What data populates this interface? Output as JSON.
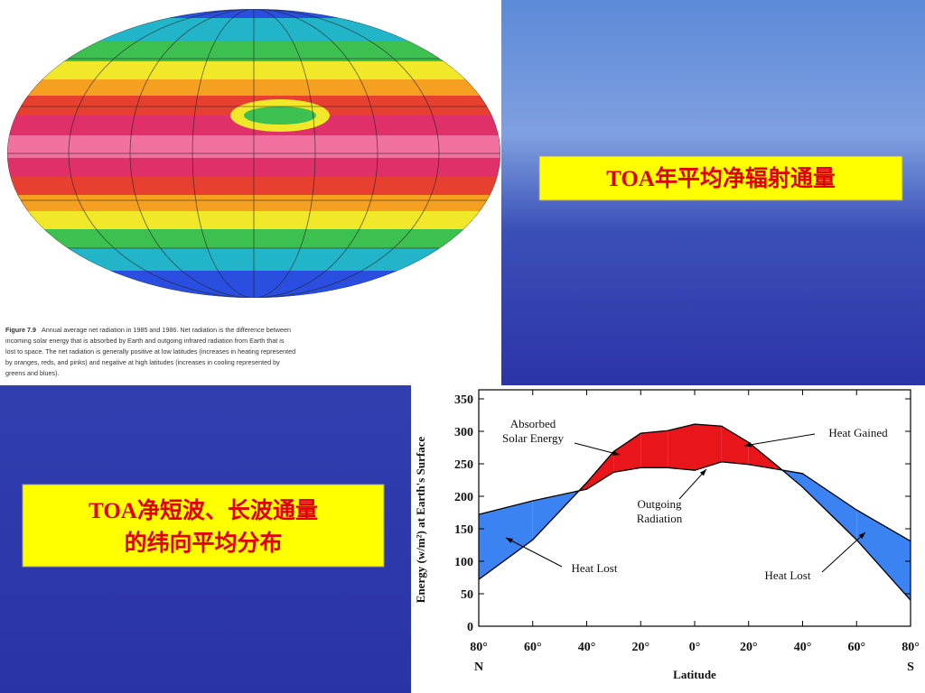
{
  "map_caption": {
    "figure_label": "Figure 7.9",
    "lines": [
      "Annual average net radiation in 1985 and 1986. Net radiation is the difference between",
      "incoming solar energy that is absorbed by Earth and outgoing infrared radiation from Earth that is",
      "lost to space. The net radiation is generally positive at low latitudes (increases in heating represented",
      "by oranges, reds, and pinks) and negative at high latitudes (increases in cooling represented by",
      "greens and blues)."
    ]
  },
  "label_top": "TOA年平均净辐射通量",
  "label_bottom": [
    "TOA净短波、长波通量",
    "的纬向平均分布"
  ],
  "chart_data": {
    "type": "line",
    "y_label": "Energy (w/m²) at Earth's Surface",
    "x_label": "Latitude",
    "x_end_labels": [
      "N",
      "S"
    ],
    "x": [
      80,
      60,
      40,
      30,
      20,
      10,
      0,
      -10,
      -20,
      -30,
      -40,
      -60,
      -80
    ],
    "series": [
      {
        "name": "Absorbed Solar Energy",
        "color": "#000000",
        "values": [
          72,
          133,
          221,
          269,
          297,
          301,
          311,
          308,
          283,
          249,
          214,
          133,
          40
        ]
      },
      {
        "name": "Outgoing Radiation",
        "color": "#000000",
        "values": [
          172,
          193,
          211,
          237,
          244,
          244,
          240,
          253,
          249,
          242,
          235,
          179,
          131
        ]
      }
    ],
    "fill_colors": {
      "gain": "#e8161b",
      "loss": "#3b82f2"
    },
    "xlim": [
      80,
      -80
    ],
    "xticks": [
      {
        "value": 80,
        "label": "80°"
      },
      {
        "value": 60,
        "label": "60°"
      },
      {
        "value": 40,
        "label": "40°"
      },
      {
        "value": 20,
        "label": "20°"
      },
      {
        "value": 0,
        "label": "0°"
      },
      {
        "value": -20,
        "label": "20°"
      },
      {
        "value": -40,
        "label": "40°"
      },
      {
        "value": -60,
        "label": "60°"
      },
      {
        "value": -80,
        "label": "80°"
      }
    ],
    "ylim": [
      0,
      350
    ],
    "yticks": [
      0,
      50,
      100,
      150,
      200,
      250,
      300,
      350
    ],
    "annotations": [
      {
        "lines": [
          "Absorbed",
          "Solar Energy"
        ]
      },
      {
        "lines": [
          "Heat Gained"
        ]
      },
      {
        "lines": [
          "Outgoing",
          "Radiation"
        ]
      },
      {
        "lines": [
          "Heat Lost"
        ]
      },
      {
        "lines": [
          "Heat Lost"
        ]
      }
    ]
  }
}
